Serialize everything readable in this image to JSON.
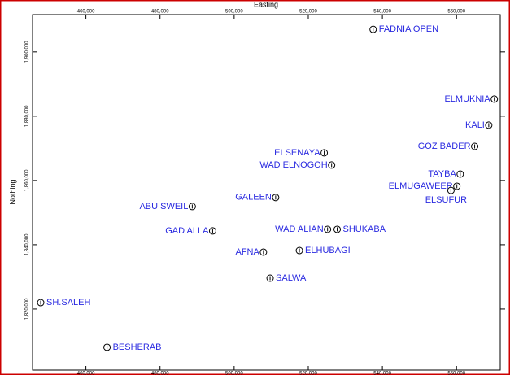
{
  "chart_data": {
    "type": "scatter",
    "xlabel": "Easting",
    "ylabel": "Nothing",
    "labels": [
      "FADNIA OPEN",
      "ELMUKNIA",
      "KALI",
      "GOZ BADER",
      "ELSENAYA",
      "WAD ELNOGOH",
      "TAYBA",
      "ELMUGAWEER",
      "ELSUFUR",
      "GALEEN",
      "ABU SWEIL",
      "WAD ALIAN",
      "SHUKABA",
      "GAD ALLA",
      "AFNA",
      "ELHUBAGI",
      "SALWA",
      "SH.SALEH",
      "BESHERAB"
    ],
    "x": [
      537500,
      570200,
      568700,
      564900,
      524300,
      526300,
      561000,
      560100,
      558500,
      511200,
      488700,
      525200,
      527800,
      494200,
      507900,
      517600,
      509700,
      447800,
      465700
    ],
    "values": [
      1907000,
      1885300,
      1877200,
      1870600,
      1868600,
      1864800,
      1862000,
      1858200,
      1856900,
      1854700,
      1851900,
      1844800,
      1844800,
      1844300,
      1837700,
      1838200,
      1829600,
      1822000,
      1808100
    ],
    "xlim": [
      445600,
      571800
    ],
    "ylim": [
      1801000,
      1911600
    ],
    "xticks": [
      {
        "value": 460000,
        "label": "460,000"
      },
      {
        "value": 480000,
        "label": "480,000"
      },
      {
        "value": 500000,
        "label": "500,000"
      },
      {
        "value": 520000,
        "label": "520,000"
      },
      {
        "value": 540000,
        "label": "540,000"
      },
      {
        "value": 560000,
        "label": "560,000"
      }
    ],
    "yticks": [
      {
        "value": 1820000,
        "label": "1,820,000"
      },
      {
        "value": 1840000,
        "label": "1,840,000"
      },
      {
        "value": 1860000,
        "label": "1,860,000"
      },
      {
        "value": 1880000,
        "label": "1,880,000"
      },
      {
        "value": 1900000,
        "label": "1,900,000"
      }
    ],
    "color": "#2a2ae0"
  }
}
